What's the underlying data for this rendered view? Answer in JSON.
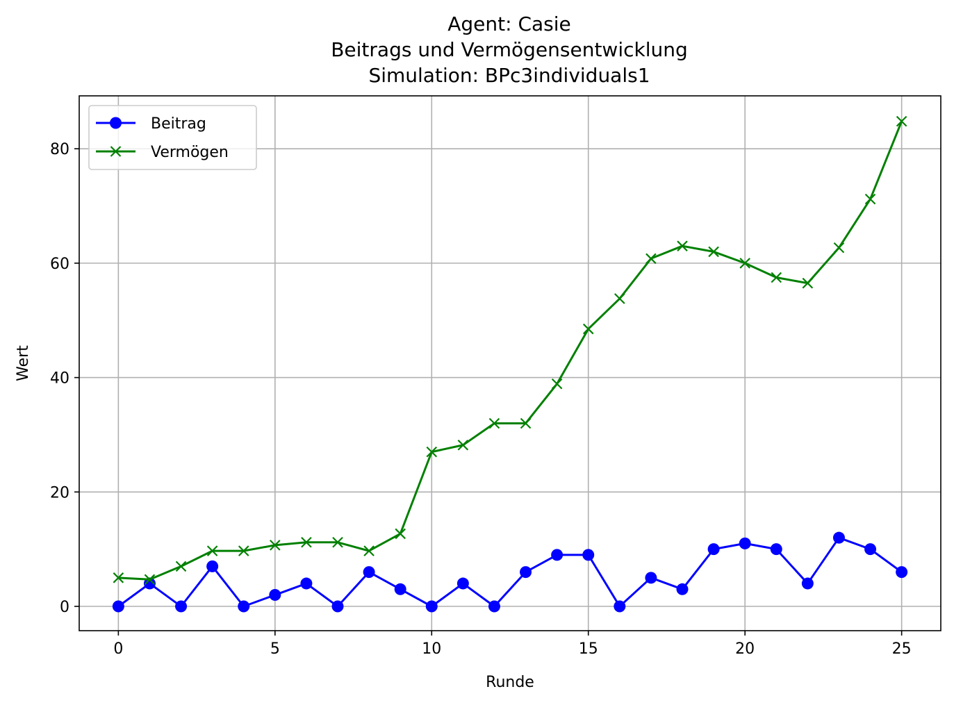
{
  "chart_data": {
    "type": "line",
    "title_lines": [
      "Agent: Casie",
      "Beitrags und Vermögensentwicklung",
      "Simulation: BPc3individuals1"
    ],
    "xlabel": "Runde",
    "ylabel": "Wert",
    "xlim": [
      -1.25,
      26.25
    ],
    "ylim": [
      -4.25,
      89.25
    ],
    "xticks": [
      0,
      5,
      10,
      15,
      20,
      25
    ],
    "yticks": [
      0,
      20,
      40,
      60,
      80
    ],
    "grid": true,
    "legend_position": "upper-left",
    "x": [
      0,
      1,
      2,
      3,
      4,
      5,
      6,
      7,
      8,
      9,
      10,
      11,
      12,
      13,
      14,
      15,
      16,
      17,
      18,
      19,
      20,
      21,
      22,
      23,
      24,
      25
    ],
    "series": [
      {
        "name": "Beitrag",
        "color": "#0000ff",
        "marker": "circle",
        "values": [
          0,
          4,
          0,
          7,
          0,
          2,
          4,
          0,
          6,
          3,
          0,
          4,
          0,
          6,
          9,
          9,
          0,
          5,
          3,
          10,
          11,
          10,
          4,
          12,
          10,
          6
        ]
      },
      {
        "name": "Vermögen",
        "color": "#008000",
        "marker": "x",
        "values": [
          5,
          4.7,
          7,
          9.7,
          9.7,
          10.7,
          11.2,
          11.2,
          9.7,
          12.7,
          27,
          28.2,
          32,
          32,
          38.9,
          48.5,
          53.8,
          60.8,
          63,
          62,
          60,
          57.5,
          56.5,
          62.7,
          71.2,
          84.8
        ]
      }
    ]
  }
}
